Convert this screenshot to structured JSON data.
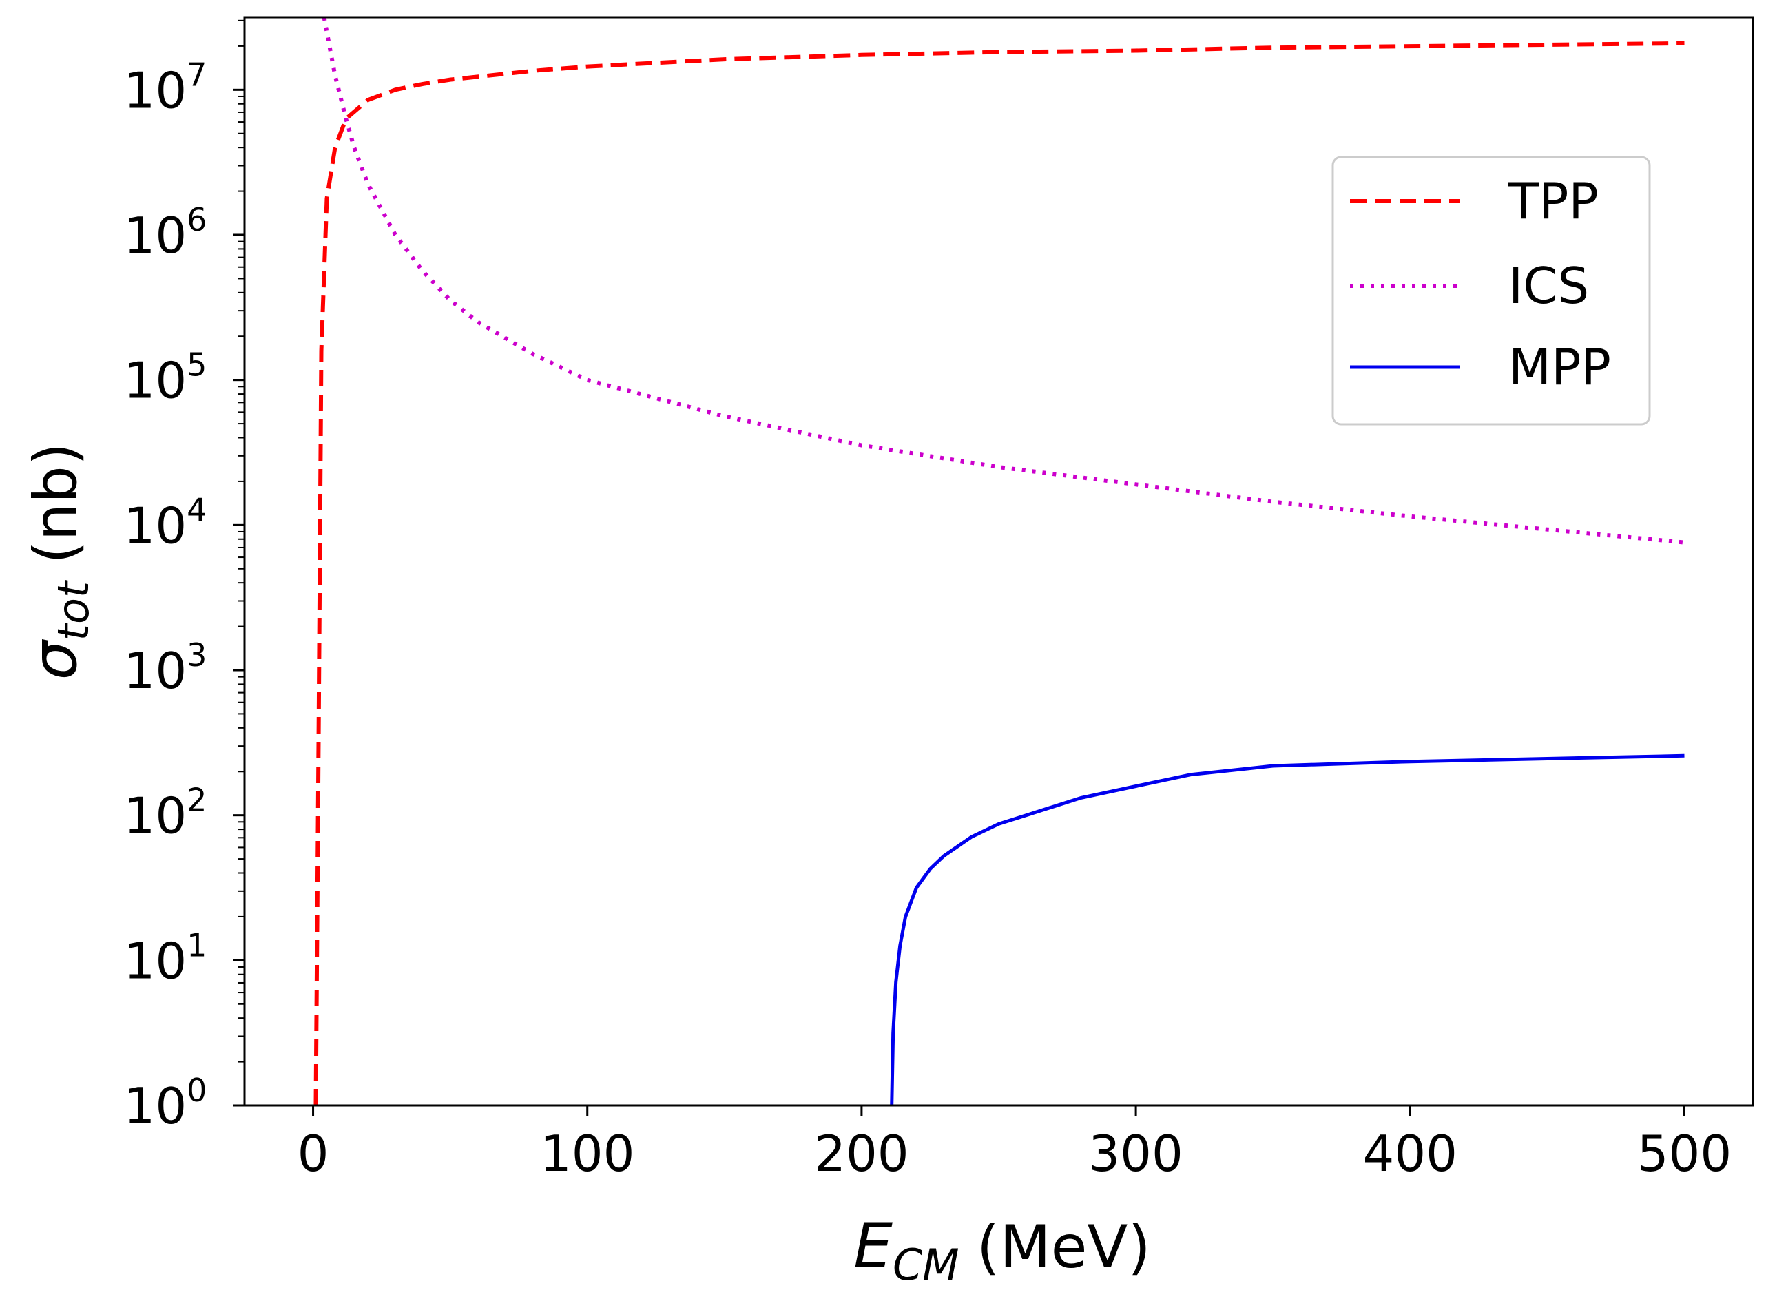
{
  "chart_data": {
    "type": "line",
    "title": "",
    "xlabel": {
      "symbol": "E",
      "subscript": "CM",
      "unit": "(MeV)"
    },
    "ylabel": {
      "symbol": "σ",
      "subscript": "tot",
      "unit": "(nb)"
    },
    "xlim": [
      -25,
      525
    ],
    "ylim_log10": [
      0,
      7.5
    ],
    "yscale": "log",
    "xticks": [
      0,
      100,
      200,
      300,
      400,
      500
    ],
    "xtick_labels": [
      "0",
      "100",
      "200",
      "300",
      "400",
      "500"
    ],
    "yticks_exponents": [
      0,
      1,
      2,
      3,
      4,
      5,
      6,
      7
    ],
    "ytick_base": "10",
    "legend_position": "upper-right",
    "series": [
      {
        "name": "TPP",
        "style": "dashed",
        "color": "#ff0000",
        "x": [
          1,
          2,
          3,
          5,
          8,
          12,
          20,
          30,
          40,
          50,
          60,
          80,
          100,
          150,
          200,
          250,
          300,
          350,
          400,
          450,
          500
        ],
        "log10_y": [
          0.0,
          2.5,
          5.2,
          6.25,
          6.6,
          6.8,
          6.93,
          7.0,
          7.04,
          7.07,
          7.09,
          7.13,
          7.16,
          7.21,
          7.24,
          7.26,
          7.27,
          7.29,
          7.3,
          7.31,
          7.32
        ]
      },
      {
        "name": "ICS",
        "style": "dotted",
        "color": "#cc00cc",
        "x": [
          4,
          6,
          8,
          10,
          12,
          15,
          20,
          30,
          40,
          50,
          60,
          80,
          100,
          150,
          200,
          250,
          300,
          350,
          400,
          450,
          500
        ],
        "log10_y": [
          7.5,
          7.3,
          7.1,
          6.95,
          6.8,
          6.6,
          6.35,
          6.0,
          5.75,
          5.55,
          5.4,
          5.18,
          5.0,
          4.75,
          4.55,
          4.4,
          4.28,
          4.16,
          4.06,
          3.97,
          3.88
        ]
      },
      {
        "name": "MPP",
        "style": "solid",
        "color": "#0000ee",
        "x": [
          211,
          211.5,
          212.5,
          214,
          216,
          220,
          225,
          230,
          240,
          250,
          260,
          280,
          300,
          320,
          350,
          400,
          450,
          500
        ],
        "log10_y": [
          0.0,
          0.5,
          0.85,
          1.1,
          1.3,
          1.5,
          1.63,
          1.72,
          1.85,
          1.94,
          2.0,
          2.12,
          2.2,
          2.28,
          2.34,
          2.37,
          2.39,
          2.41
        ]
      }
    ]
  }
}
